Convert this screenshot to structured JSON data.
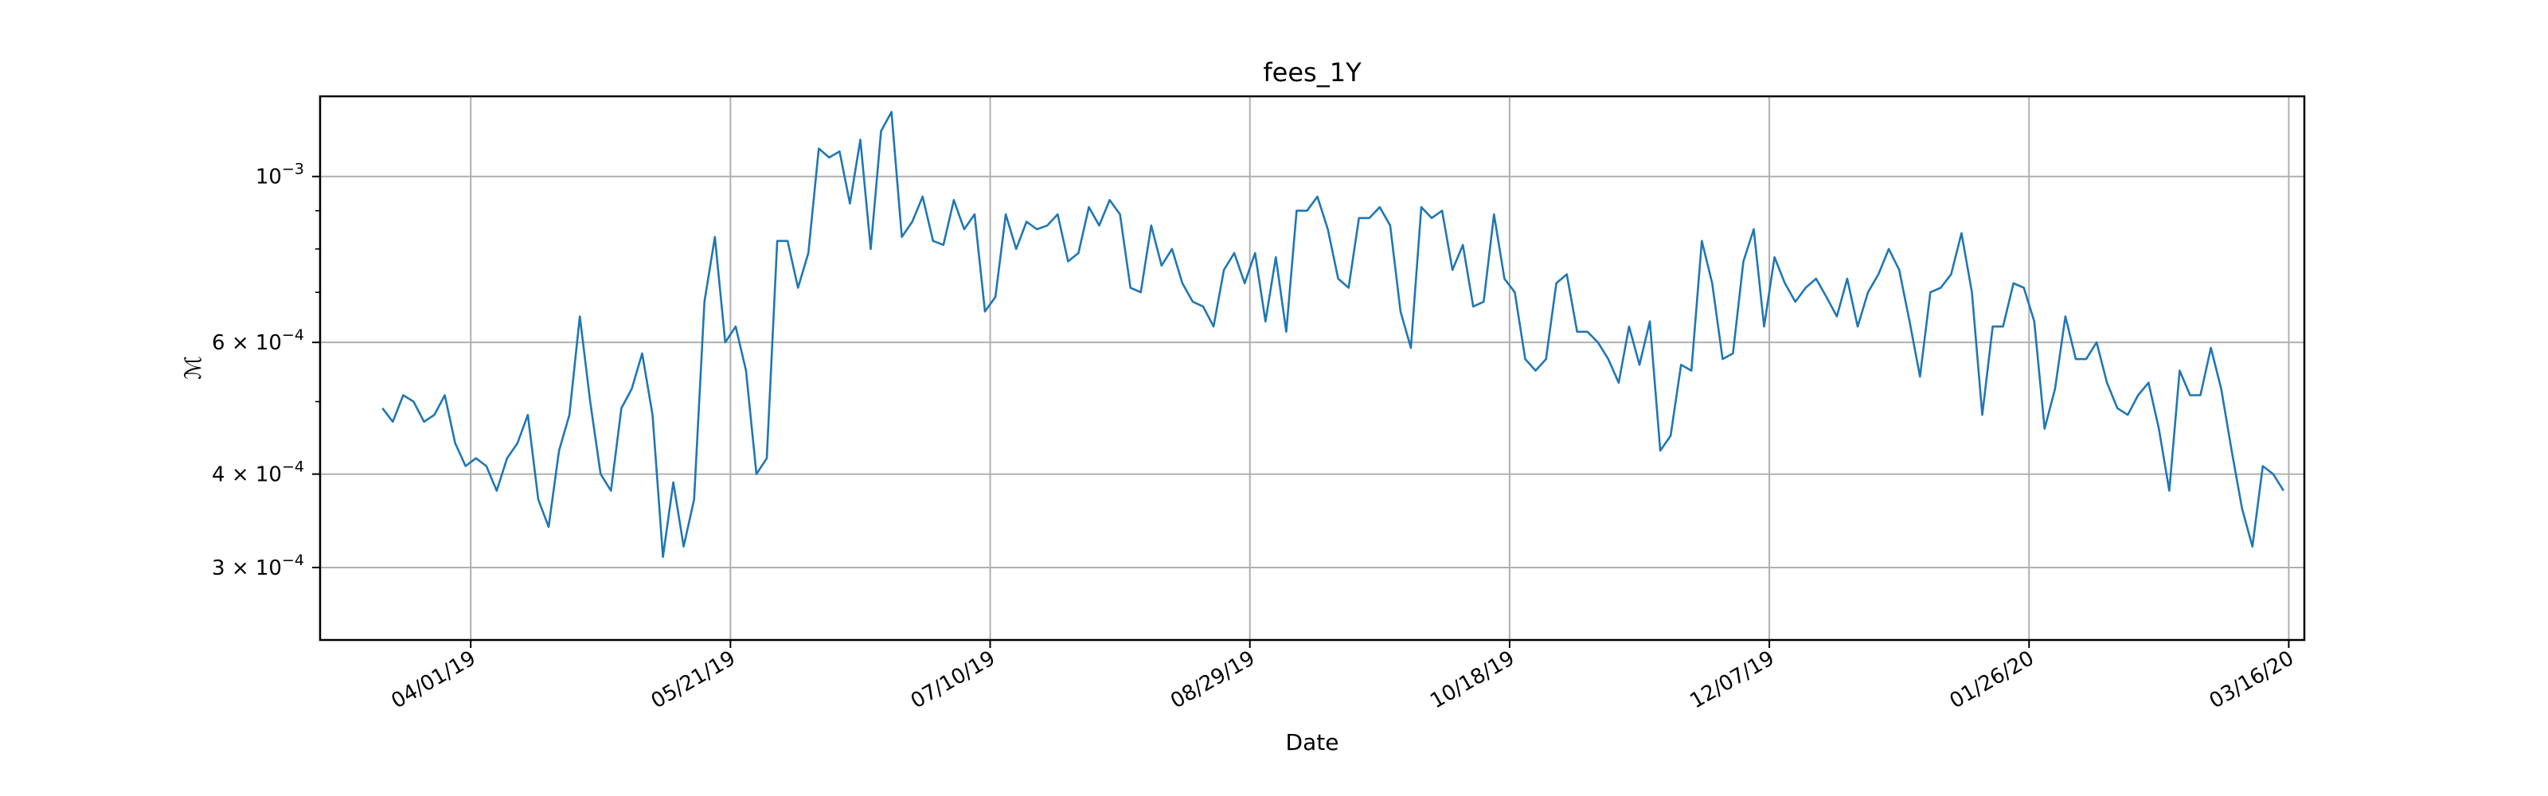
{
  "chart_data": {
    "type": "line",
    "title": "fees_1Y",
    "xlabel": "Date",
    "ylabel": "ℳ",
    "yscale": "log",
    "ylim": [
      0.00024,
      0.00128
    ],
    "xlim": [
      "2019-03-03",
      "2020-03-19"
    ],
    "grid": true,
    "x_ticks": [
      {
        "date": "2019-04-01",
        "label": "04/01/19"
      },
      {
        "date": "2019-05-21",
        "label": "05/21/19"
      },
      {
        "date": "2019-07-10",
        "label": "07/10/19"
      },
      {
        "date": "2019-08-29",
        "label": "08/29/19"
      },
      {
        "date": "2019-10-18",
        "label": "10/18/19"
      },
      {
        "date": "2019-12-07",
        "label": "12/07/19"
      },
      {
        "date": "2020-01-26",
        "label": "01/26/20"
      },
      {
        "date": "2020-03-16",
        "label": "03/16/20"
      }
    ],
    "y_ticks": [
      {
        "value": 0.0003,
        "mantissa": "3 × 10",
        "exponent": "−4"
      },
      {
        "value": 0.0004,
        "mantissa": "4 × 10",
        "exponent": "−4"
      },
      {
        "value": 0.0006,
        "mantissa": "6 × 10",
        "exponent": "−4"
      },
      {
        "value": 0.001,
        "mantissa": "10",
        "exponent": "−3"
      }
    ],
    "y_minor_ticks": [
      0.0005,
      0.0007,
      0.0008,
      0.0009
    ],
    "series": [
      {
        "color": "#1f77b4",
        "points": [
          [
            "2019-03-15",
            0.00049
          ],
          [
            "2019-03-17",
            0.00047
          ],
          [
            "2019-03-19",
            0.00051
          ],
          [
            "2019-03-21",
            0.0005
          ],
          [
            "2019-03-23",
            0.00047
          ],
          [
            "2019-03-25",
            0.00048
          ],
          [
            "2019-03-27",
            0.00051
          ],
          [
            "2019-03-29",
            0.00044
          ],
          [
            "2019-03-31",
            0.00041
          ],
          [
            "2019-04-02",
            0.00042
          ],
          [
            "2019-04-04",
            0.00041
          ],
          [
            "2019-04-06",
            0.00038
          ],
          [
            "2019-04-08",
            0.00042
          ],
          [
            "2019-04-10",
            0.00044
          ],
          [
            "2019-04-12",
            0.00048
          ],
          [
            "2019-04-14",
            0.00037
          ],
          [
            "2019-04-16",
            0.00034
          ],
          [
            "2019-04-18",
            0.00043
          ],
          [
            "2019-04-20",
            0.00048
          ],
          [
            "2019-04-22",
            0.00065
          ],
          [
            "2019-04-24",
            0.0005
          ],
          [
            "2019-04-26",
            0.0004
          ],
          [
            "2019-04-28",
            0.00038
          ],
          [
            "2019-04-30",
            0.00049
          ],
          [
            "2019-05-02",
            0.00052
          ],
          [
            "2019-05-04",
            0.00058
          ],
          [
            "2019-05-06",
            0.00048
          ],
          [
            "2019-05-08",
            0.00031
          ],
          [
            "2019-05-10",
            0.00039
          ],
          [
            "2019-05-12",
            0.00032
          ],
          [
            "2019-05-14",
            0.00037
          ],
          [
            "2019-05-16",
            0.00068
          ],
          [
            "2019-05-18",
            0.00083
          ],
          [
            "2019-05-20",
            0.0006
          ],
          [
            "2019-05-22",
            0.00063
          ],
          [
            "2019-05-24",
            0.00055
          ],
          [
            "2019-05-26",
            0.0004
          ],
          [
            "2019-05-28",
            0.00042
          ],
          [
            "2019-05-30",
            0.00082
          ],
          [
            "2019-06-01",
            0.00082
          ],
          [
            "2019-06-03",
            0.00071
          ],
          [
            "2019-06-05",
            0.00079
          ],
          [
            "2019-06-07",
            0.00109
          ],
          [
            "2019-06-09",
            0.00106
          ],
          [
            "2019-06-11",
            0.00108
          ],
          [
            "2019-06-13",
            0.00092
          ],
          [
            "2019-06-15",
            0.00112
          ],
          [
            "2019-06-17",
            0.0008
          ],
          [
            "2019-06-19",
            0.00115
          ],
          [
            "2019-06-21",
            0.00122
          ],
          [
            "2019-06-23",
            0.00083
          ],
          [
            "2019-06-25",
            0.00087
          ],
          [
            "2019-06-27",
            0.00094
          ],
          [
            "2019-06-29",
            0.00082
          ],
          [
            "2019-07-01",
            0.00081
          ],
          [
            "2019-07-03",
            0.00093
          ],
          [
            "2019-07-05",
            0.00085
          ],
          [
            "2019-07-07",
            0.00089
          ],
          [
            "2019-07-09",
            0.00066
          ],
          [
            "2019-07-11",
            0.00069
          ],
          [
            "2019-07-13",
            0.00089
          ],
          [
            "2019-07-15",
            0.0008
          ],
          [
            "2019-07-17",
            0.00087
          ],
          [
            "2019-07-19",
            0.00085
          ],
          [
            "2019-07-21",
            0.00086
          ],
          [
            "2019-07-23",
            0.00089
          ],
          [
            "2019-07-25",
            0.00077
          ],
          [
            "2019-07-27",
            0.00079
          ],
          [
            "2019-07-29",
            0.00091
          ],
          [
            "2019-07-31",
            0.00086
          ],
          [
            "2019-08-02",
            0.00093
          ],
          [
            "2019-08-04",
            0.00089
          ],
          [
            "2019-08-06",
            0.00071
          ],
          [
            "2019-08-08",
            0.0007
          ],
          [
            "2019-08-10",
            0.00086
          ],
          [
            "2019-08-12",
            0.00076
          ],
          [
            "2019-08-14",
            0.0008
          ],
          [
            "2019-08-16",
            0.00072
          ],
          [
            "2019-08-18",
            0.00068
          ],
          [
            "2019-08-20",
            0.00067
          ],
          [
            "2019-08-22",
            0.00063
          ],
          [
            "2019-08-24",
            0.00075
          ],
          [
            "2019-08-26",
            0.00079
          ],
          [
            "2019-08-28",
            0.00072
          ],
          [
            "2019-08-30",
            0.00079
          ],
          [
            "2019-09-01",
            0.00064
          ],
          [
            "2019-09-03",
            0.00078
          ],
          [
            "2019-09-05",
            0.00062
          ],
          [
            "2019-09-07",
            0.0009
          ],
          [
            "2019-09-09",
            0.0009
          ],
          [
            "2019-09-11",
            0.00094
          ],
          [
            "2019-09-13",
            0.00085
          ],
          [
            "2019-09-15",
            0.00073
          ],
          [
            "2019-09-17",
            0.00071
          ],
          [
            "2019-09-19",
            0.00088
          ],
          [
            "2019-09-21",
            0.00088
          ],
          [
            "2019-09-23",
            0.00091
          ],
          [
            "2019-09-25",
            0.00086
          ],
          [
            "2019-09-27",
            0.00066
          ],
          [
            "2019-09-29",
            0.00059
          ],
          [
            "2019-10-01",
            0.00091
          ],
          [
            "2019-10-03",
            0.00088
          ],
          [
            "2019-10-05",
            0.0009
          ],
          [
            "2019-10-07",
            0.00075
          ],
          [
            "2019-10-09",
            0.00081
          ],
          [
            "2019-10-11",
            0.00067
          ],
          [
            "2019-10-13",
            0.00068
          ],
          [
            "2019-10-15",
            0.00089
          ],
          [
            "2019-10-17",
            0.00073
          ],
          [
            "2019-10-19",
            0.0007
          ],
          [
            "2019-10-21",
            0.00057
          ],
          [
            "2019-10-23",
            0.00055
          ],
          [
            "2019-10-25",
            0.00057
          ],
          [
            "2019-10-27",
            0.00072
          ],
          [
            "2019-10-29",
            0.00074
          ],
          [
            "2019-10-31",
            0.00062
          ],
          [
            "2019-11-02",
            0.00062
          ],
          [
            "2019-11-04",
            0.0006
          ],
          [
            "2019-11-06",
            0.00057
          ],
          [
            "2019-11-08",
            0.00053
          ],
          [
            "2019-11-10",
            0.00063
          ],
          [
            "2019-11-12",
            0.00056
          ],
          [
            "2019-11-14",
            0.00064
          ],
          [
            "2019-11-16",
            0.00043
          ],
          [
            "2019-11-18",
            0.00045
          ],
          [
            "2019-11-20",
            0.00056
          ],
          [
            "2019-11-22",
            0.00055
          ],
          [
            "2019-11-24",
            0.00082
          ],
          [
            "2019-11-26",
            0.00072
          ],
          [
            "2019-11-28",
            0.00057
          ],
          [
            "2019-11-30",
            0.00058
          ],
          [
            "2019-12-02",
            0.00077
          ],
          [
            "2019-12-04",
            0.00085
          ],
          [
            "2019-12-06",
            0.00063
          ],
          [
            "2019-12-08",
            0.00078
          ],
          [
            "2019-12-10",
            0.00072
          ],
          [
            "2019-12-12",
            0.00068
          ],
          [
            "2019-12-14",
            0.00071
          ],
          [
            "2019-12-16",
            0.00073
          ],
          [
            "2019-12-18",
            0.00069
          ],
          [
            "2019-12-20",
            0.00065
          ],
          [
            "2019-12-22",
            0.00073
          ],
          [
            "2019-12-24",
            0.00063
          ],
          [
            "2019-12-26",
            0.0007
          ],
          [
            "2019-12-28",
            0.00074
          ],
          [
            "2019-12-30",
            0.0008
          ],
          [
            "2020-01-01",
            0.00075
          ],
          [
            "2020-01-03",
            0.00064
          ],
          [
            "2020-01-05",
            0.00054
          ],
          [
            "2020-01-07",
            0.0007
          ],
          [
            "2020-01-09",
            0.00071
          ],
          [
            "2020-01-11",
            0.00074
          ],
          [
            "2020-01-13",
            0.00084
          ],
          [
            "2020-01-15",
            0.0007
          ],
          [
            "2020-01-17",
            0.00048
          ],
          [
            "2020-01-19",
            0.00063
          ],
          [
            "2020-01-21",
            0.00063
          ],
          [
            "2020-01-23",
            0.00072
          ],
          [
            "2020-01-25",
            0.00071
          ],
          [
            "2020-01-27",
            0.00064
          ],
          [
            "2020-01-29",
            0.00046
          ],
          [
            "2020-01-31",
            0.00052
          ],
          [
            "2020-02-02",
            0.00065
          ],
          [
            "2020-02-04",
            0.00057
          ],
          [
            "2020-02-06",
            0.00057
          ],
          [
            "2020-02-08",
            0.0006
          ],
          [
            "2020-02-10",
            0.00053
          ],
          [
            "2020-02-12",
            0.00049
          ],
          [
            "2020-02-14",
            0.00048
          ],
          [
            "2020-02-16",
            0.00051
          ],
          [
            "2020-02-18",
            0.00053
          ],
          [
            "2020-02-20",
            0.00046
          ],
          [
            "2020-02-22",
            0.00038
          ],
          [
            "2020-02-24",
            0.00055
          ],
          [
            "2020-02-26",
            0.00051
          ],
          [
            "2020-02-28",
            0.00051
          ],
          [
            "2020-03-01",
            0.00059
          ],
          [
            "2020-03-03",
            0.00052
          ],
          [
            "2020-03-05",
            0.00043
          ],
          [
            "2020-03-07",
            0.00036
          ],
          [
            "2020-03-09",
            0.00032
          ],
          [
            "2020-03-11",
            0.00041
          ],
          [
            "2020-03-13",
            0.0004
          ],
          [
            "2020-03-15",
            0.00038
          ]
        ]
      }
    ]
  }
}
